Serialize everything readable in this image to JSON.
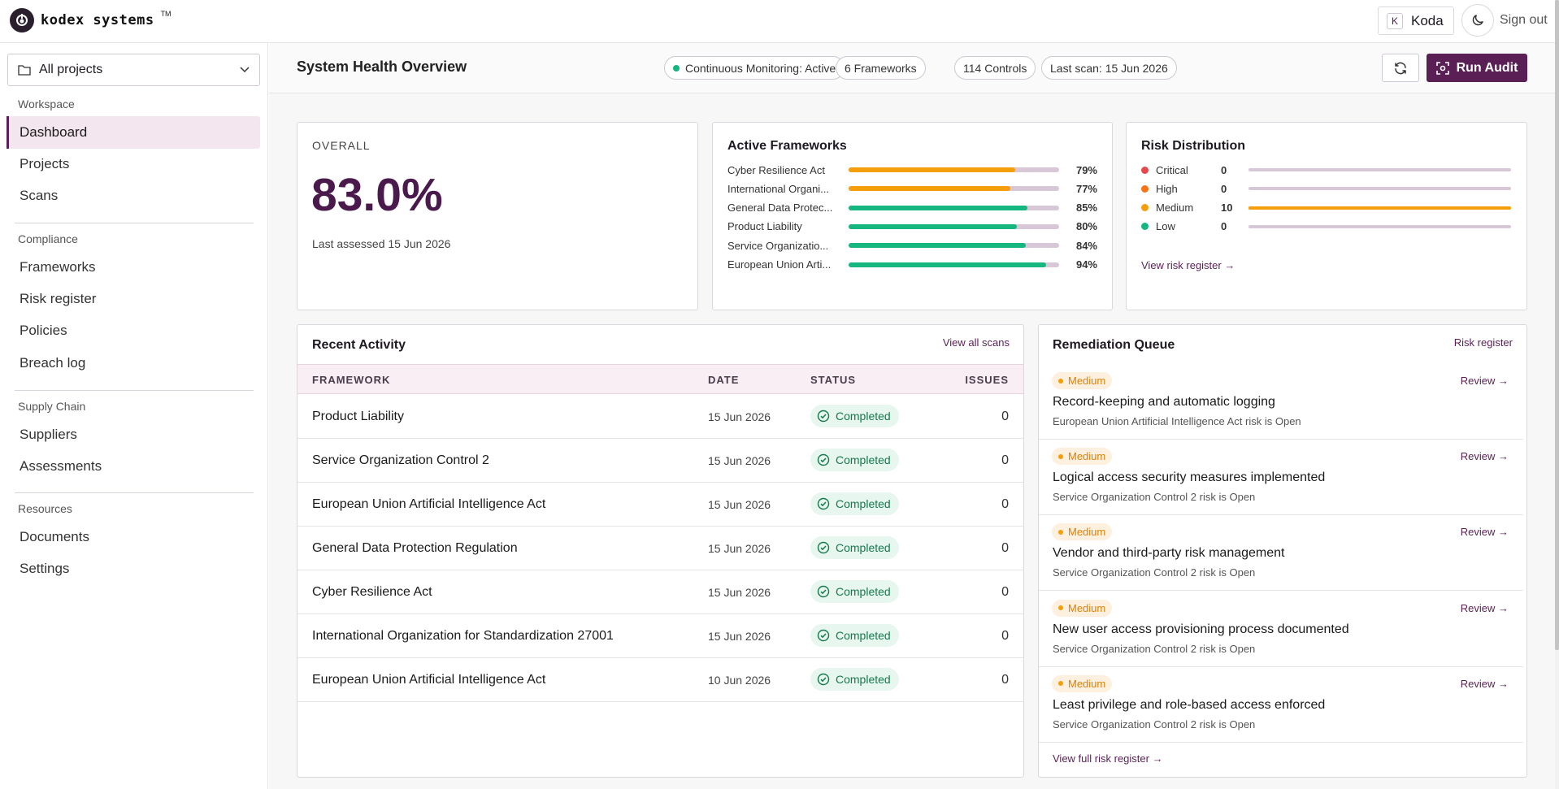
{
  "brand": {
    "name": "kodex systems",
    "tm": "TM"
  },
  "user": {
    "initial": "K",
    "name": "Koda",
    "sign_out": "Sign out"
  },
  "sidebar": {
    "project_select": "All projects",
    "sections": [
      {
        "label": "Workspace",
        "items": [
          "Dashboard",
          "Projects",
          "Scans"
        ]
      },
      {
        "label": "Compliance",
        "items": [
          "Frameworks",
          "Risk register",
          "Policies",
          "Breach log"
        ]
      },
      {
        "label": "Supply Chain",
        "items": [
          "Suppliers",
          "Assessments"
        ]
      },
      {
        "label": "Resources",
        "items": [
          "Documents",
          "Settings"
        ]
      }
    ],
    "active": "Dashboard"
  },
  "header": {
    "title": "System Health Overview",
    "chips": [
      "Continuous Monitoring: Active",
      "6 Frameworks",
      "114 Controls",
      "Last scan: 15 Jun 2026"
    ],
    "run_audit": "Run Audit"
  },
  "overall": {
    "label": "OVERALL",
    "value": "83.0%",
    "sub": "Last assessed 15 Jun 2026"
  },
  "frameworks_card": {
    "title": "Active Frameworks",
    "items": [
      {
        "name": "Cyber Resilience Act",
        "pct": 79,
        "label": "79%",
        "color": "#f59e0b"
      },
      {
        "name": "International Organi...",
        "pct": 77,
        "label": "77%",
        "color": "#f59e0b"
      },
      {
        "name": "General Data Protec...",
        "pct": 85,
        "label": "85%",
        "color": "#16b67f"
      },
      {
        "name": "Product Liability",
        "pct": 80,
        "label": "80%",
        "color": "#16b67f"
      },
      {
        "name": "Service Organizatio...",
        "pct": 84,
        "label": "84%",
        "color": "#16b67f"
      },
      {
        "name": "European Union Arti...",
        "pct": 94,
        "label": "94%",
        "color": "#16b67f"
      }
    ]
  },
  "risk_card": {
    "title": "Risk Distribution",
    "items": [
      {
        "name": "Critical",
        "count": "0",
        "fill": 0,
        "color": "#e5484d"
      },
      {
        "name": "High",
        "count": "0",
        "fill": 0,
        "color": "#f97316"
      },
      {
        "name": "Medium",
        "count": "10",
        "fill": 1,
        "color": "#f59e0b"
      },
      {
        "name": "Low",
        "count": "0",
        "fill": 0,
        "color": "#16b67f"
      }
    ],
    "link": "View risk register →"
  },
  "activity": {
    "title": "Recent Activity",
    "link": "View all scans",
    "columns": [
      "FRAMEWORK",
      "DATE",
      "STATUS",
      "ISSUES"
    ],
    "rows": [
      {
        "framework": "Product Liability",
        "date": "15 Jun 2026",
        "status": "Completed",
        "issues": "0"
      },
      {
        "framework": "Service Organization Control 2",
        "date": "15 Jun 2026",
        "status": "Completed",
        "issues": "0"
      },
      {
        "framework": "European Union Artificial Intelligence Act",
        "date": "15 Jun 2026",
        "status": "Completed",
        "issues": "0"
      },
      {
        "framework": "General Data Protection Regulation",
        "date": "15 Jun 2026",
        "status": "Completed",
        "issues": "0"
      },
      {
        "framework": "Cyber Resilience Act",
        "date": "15 Jun 2026",
        "status": "Completed",
        "issues": "0"
      },
      {
        "framework": "International Organization for Standardization 27001",
        "date": "15 Jun 2026",
        "status": "Completed",
        "issues": "0"
      },
      {
        "framework": "European Union Artificial Intelligence Act",
        "date": "10 Jun 2026",
        "status": "Completed",
        "issues": "0"
      }
    ]
  },
  "remediation": {
    "title": "Remediation Queue",
    "link": "Risk register",
    "review_label": "Review",
    "items": [
      {
        "severity": "Medium",
        "title": "Record-keeping and automatic logging",
        "sub": "European Union Artificial Intelligence Act risk is Open"
      },
      {
        "severity": "Medium",
        "title": "Logical access security measures implemented",
        "sub": "Service Organization Control 2 risk is Open"
      },
      {
        "severity": "Medium",
        "title": "Vendor and third-party risk management",
        "sub": "Service Organization Control 2 risk is Open"
      },
      {
        "severity": "Medium",
        "title": "New user access provisioning process documented",
        "sub": "Service Organization Control 2 risk is Open"
      },
      {
        "severity": "Medium",
        "title": "Least privilege and role-based access enforced",
        "sub": "Service Organization Control 2 risk is Open"
      }
    ],
    "footer_link": "View full risk register →"
  },
  "colors": {
    "accent": "#5a1f55",
    "green": "#16b67f",
    "orange": "#f59e0b"
  }
}
